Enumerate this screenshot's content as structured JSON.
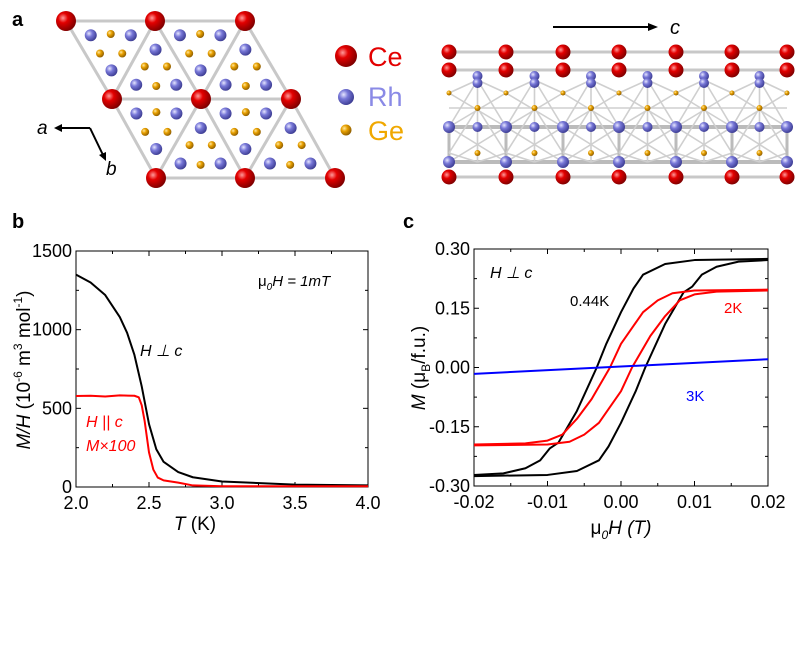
{
  "panel_labels": {
    "a": "a",
    "b": "b",
    "c": "c"
  },
  "structure": {
    "legend": [
      {
        "label": "Ce",
        "color": "#e30000"
      },
      {
        "label": "Rh",
        "color": "#8a8ae6"
      },
      {
        "label": "Ge",
        "color": "#f0a800"
      }
    ],
    "axis_a": "a",
    "axis_b": "b",
    "axis_c": "c"
  },
  "chart_data": [
    {
      "type": "line",
      "panel": "b",
      "xlabel_italic": "T",
      "xlabel_rest": " (K)",
      "ylabel_italic": "M/H",
      "ylabel_rest": " (10",
      "ylabel_sup1": "-6",
      "ylabel_mid": " m",
      "ylabel_sup2": "3",
      "ylabel_mid2": " mol",
      "ylabel_sup3": "-1",
      "ylabel_end": ")",
      "xlim": [
        2.0,
        4.0
      ],
      "ylim": [
        0,
        1500
      ],
      "xticks": [
        "2.0",
        "2.5",
        "3.0",
        "3.5",
        "4.0"
      ],
      "yticks": [
        "0",
        "500",
        "1000",
        "1500"
      ],
      "annotations": {
        "field_mu": "μ",
        "field_sub": "0",
        "field_rest": "H = 1mT",
        "perp": "H ⊥ c",
        "par": "H || c",
        "scale": "M×100"
      },
      "series": [
        {
          "name": "H ⊥ c",
          "color": "#000000",
          "x": [
            2.0,
            2.1,
            2.2,
            2.3,
            2.35,
            2.4,
            2.45,
            2.5,
            2.55,
            2.6,
            2.7,
            2.8,
            3.0,
            3.5,
            4.0
          ],
          "y": [
            1350,
            1300,
            1220,
            1080,
            980,
            840,
            640,
            400,
            240,
            160,
            95,
            62,
            35,
            15,
            10
          ]
        },
        {
          "name": "H || c (M×100)",
          "color": "#ff0000",
          "x": [
            2.0,
            2.1,
            2.2,
            2.3,
            2.4,
            2.43,
            2.45,
            2.47,
            2.5,
            2.53,
            2.56,
            2.6,
            2.7,
            2.8,
            3.0,
            3.5,
            4.0
          ],
          "y": [
            578,
            580,
            575,
            582,
            580,
            570,
            520,
            420,
            220,
            110,
            60,
            42,
            28,
            10,
            5,
            5,
            5
          ]
        }
      ]
    },
    {
      "type": "line",
      "panel": "c",
      "xlabel_mu": "μ",
      "xlabel_sub": "0",
      "xlabel_rest": "H (T)",
      "ylabel_italic": "M",
      "ylabel_pre": " (μ",
      "ylabel_sub": "B",
      "ylabel_rest": "/f.u.)",
      "xlim": [
        -0.02,
        0.02
      ],
      "ylim": [
        -0.3,
        0.3
      ],
      "xticks": [
        "-0.02",
        "-0.01",
        "0.00",
        "0.01",
        "0.02"
      ],
      "yticks": [
        "-0.30",
        "-0.15",
        "0.00",
        "0.15",
        "0.30"
      ],
      "annotations": {
        "orient": "H ⊥ c"
      },
      "series": [
        {
          "name": "0.44K",
          "color": "#000000",
          "loop": true,
          "x": [
            0.02,
            0.01,
            0.006,
            0.003,
            0.0017,
            0.0,
            -0.002,
            -0.0033,
            -0.006,
            -0.0085,
            -0.0097,
            -0.011,
            -0.013,
            -0.016,
            -0.02
          ],
          "y": [
            0.275,
            0.272,
            0.262,
            0.235,
            0.2,
            0.14,
            0.06,
            0.0,
            -0.11,
            -0.19,
            -0.205,
            -0.235,
            -0.255,
            -0.268,
            -0.272
          ]
        },
        {
          "name": "2K",
          "color": "#ff0000",
          "loop": true,
          "x": [
            0.02,
            0.01,
            0.007,
            0.005,
            0.003,
            0.0,
            -0.0015,
            -0.004,
            -0.006,
            -0.008,
            -0.01,
            -0.013,
            -0.02
          ],
          "y": [
            0.197,
            0.195,
            0.188,
            0.17,
            0.14,
            0.06,
            0.0,
            -0.08,
            -0.13,
            -0.17,
            -0.185,
            -0.192,
            -0.195
          ]
        },
        {
          "name": "3K",
          "color": "#0000ff",
          "loop": false,
          "x": [
            -0.02,
            0.02
          ],
          "y": [
            -0.016,
            0.021
          ]
        }
      ]
    }
  ]
}
